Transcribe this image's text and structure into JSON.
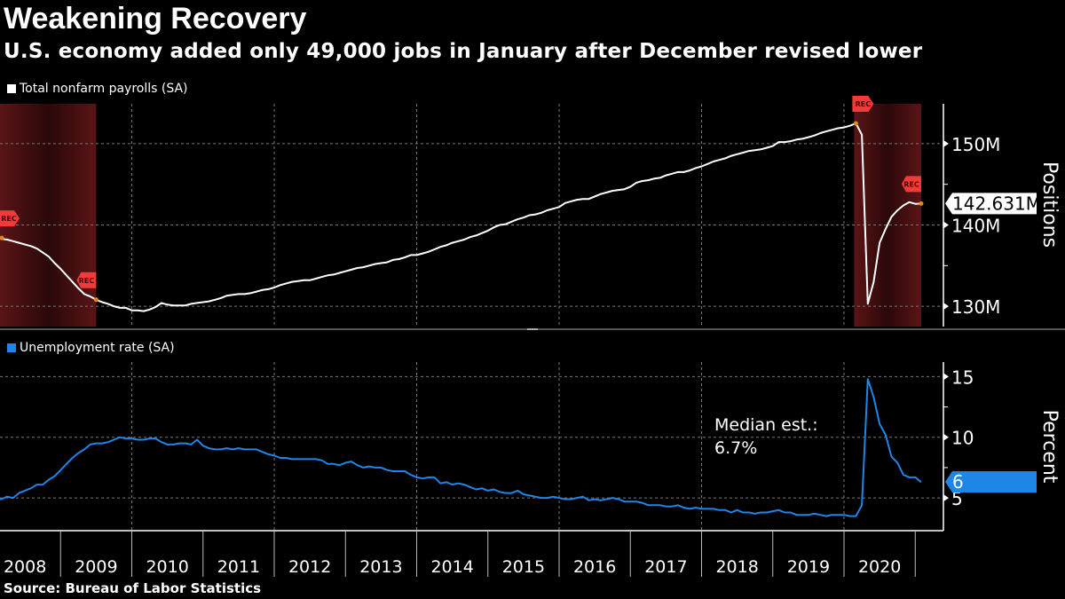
{
  "header": {
    "title": "Weakening Recovery",
    "subtitle": "U.S. economy added only 49,000 jobs in January after December revised lower"
  },
  "source": "Source: Bureau of Labor Statistics",
  "colors": {
    "background": "#000000",
    "payrolls": "#ffffff",
    "unemployment": "#1f86e8",
    "recession": "#5a1416",
    "rec_marker": "#f23a3a"
  },
  "chart_data": [
    {
      "type": "line",
      "legend": "Total nonfarm payrolls (SA)",
      "ylabel": "Positions",
      "ylim": [
        127.5,
        154.9
      ],
      "yticks": [
        "130M",
        "140M",
        "150M"
      ],
      "ytick_values": [
        130,
        140,
        150
      ],
      "start": "2008-01",
      "frequency": "monthly",
      "last_value_label": "142.631M",
      "recession_marker_label": "REC",
      "recessions": [
        [
          "2007-12",
          "2009-06"
        ],
        [
          "2020-02",
          "2021-01"
        ]
      ],
      "grid": true,
      "series": [
        {
          "values": [
            138.4,
            138.3,
            138.2,
            138.0,
            137.8,
            137.6,
            137.4,
            137.1,
            136.6,
            136.1,
            135.3,
            134.6,
            133.8,
            133.0,
            132.2,
            131.5,
            131.2,
            130.8,
            130.5,
            130.3,
            130.0,
            129.8,
            129.8,
            129.5,
            129.5,
            129.4,
            129.6,
            129.9,
            130.4,
            130.2,
            130.1,
            130.1,
            130.1,
            130.3,
            130.4,
            130.5,
            130.6,
            130.8,
            131.0,
            131.3,
            131.4,
            131.5,
            131.5,
            131.6,
            131.8,
            132.0,
            132.1,
            132.3,
            132.6,
            132.8,
            133.0,
            133.1,
            133.2,
            133.2,
            133.4,
            133.6,
            133.8,
            133.9,
            134.1,
            134.3,
            134.5,
            134.7,
            134.8,
            135.0,
            135.2,
            135.3,
            135.4,
            135.7,
            135.8,
            136.0,
            136.3,
            136.3,
            136.5,
            136.7,
            137.0,
            137.3,
            137.5,
            137.8,
            138.0,
            138.2,
            138.5,
            138.7,
            139.0,
            139.3,
            139.7,
            140.0,
            140.1,
            140.4,
            140.7,
            140.9,
            141.2,
            141.3,
            141.5,
            141.8,
            142.0,
            142.2,
            142.7,
            142.9,
            143.1,
            143.2,
            143.2,
            143.5,
            143.8,
            144.0,
            144.2,
            144.3,
            144.4,
            144.7,
            145.2,
            145.4,
            145.5,
            145.7,
            145.8,
            146.1,
            146.3,
            146.5,
            146.5,
            146.7,
            147.0,
            147.2,
            147.5,
            147.8,
            148.0,
            148.2,
            148.5,
            148.7,
            148.9,
            149.1,
            149.2,
            149.3,
            149.5,
            149.7,
            150.2,
            150.2,
            150.3,
            150.5,
            150.6,
            150.8,
            151.0,
            151.3,
            151.5,
            151.7,
            151.9,
            152.0,
            152.2,
            152.5,
            151.1,
            130.3,
            133.0,
            137.8,
            139.5,
            141.0,
            141.8,
            142.4,
            142.8,
            142.6,
            142.631
          ]
        }
      ]
    },
    {
      "type": "line",
      "legend": "Unemployment rate (SA)",
      "ylabel": "Percent",
      "ylim": [
        2.3,
        16.2
      ],
      "yticks": [
        "5",
        "10",
        "15"
      ],
      "ytick_values": [
        5,
        10,
        15
      ],
      "start": "2008-01",
      "frequency": "monthly",
      "last_value_label": "6",
      "annotation": [
        "Median est.:",
        "6.7%"
      ],
      "grid": true,
      "series": [
        {
          "values": [
            5.0,
            4.9,
            5.1,
            5.0,
            5.4,
            5.6,
            5.8,
            6.1,
            6.1,
            6.5,
            6.8,
            7.3,
            7.8,
            8.3,
            8.7,
            9.0,
            9.4,
            9.5,
            9.5,
            9.6,
            9.8,
            10.0,
            9.9,
            9.9,
            9.8,
            9.8,
            9.9,
            9.9,
            9.6,
            9.4,
            9.4,
            9.5,
            9.5,
            9.4,
            9.8,
            9.3,
            9.1,
            9.0,
            9.0,
            9.1,
            9.0,
            9.1,
            9.0,
            9.0,
            9.0,
            8.8,
            8.6,
            8.5,
            8.3,
            8.3,
            8.2,
            8.2,
            8.2,
            8.2,
            8.2,
            8.1,
            7.8,
            7.8,
            7.7,
            7.9,
            8.0,
            7.7,
            7.5,
            7.6,
            7.5,
            7.5,
            7.3,
            7.2,
            7.2,
            7.2,
            6.9,
            6.7,
            6.6,
            6.7,
            6.7,
            6.2,
            6.3,
            6.1,
            6.2,
            6.1,
            5.9,
            5.7,
            5.8,
            5.6,
            5.7,
            5.5,
            5.4,
            5.4,
            5.6,
            5.3,
            5.2,
            5.1,
            5.0,
            5.0,
            5.1,
            5.0,
            4.9,
            4.9,
            5.0,
            5.1,
            4.8,
            4.9,
            4.8,
            4.9,
            5.0,
            4.9,
            4.7,
            4.7,
            4.7,
            4.6,
            4.4,
            4.4,
            4.4,
            4.3,
            4.3,
            4.4,
            4.2,
            4.1,
            4.2,
            4.1,
            4.1,
            4.1,
            4.0,
            4.0,
            3.8,
            4.0,
            3.8,
            3.8,
            3.7,
            3.8,
            3.8,
            3.9,
            4.0,
            3.8,
            3.8,
            3.6,
            3.6,
            3.6,
            3.7,
            3.6,
            3.5,
            3.6,
            3.6,
            3.6,
            3.5,
            3.5,
            4.4,
            14.8,
            13.3,
            11.1,
            10.2,
            8.4,
            7.9,
            6.9,
            6.7,
            6.7,
            6.3
          ]
        }
      ]
    }
  ],
  "x_axis": {
    "tick_labels": [
      "2008",
      "2009",
      "2010",
      "2011",
      "2012",
      "2013",
      "2014",
      "2015",
      "2016",
      "2017",
      "2018",
      "2019",
      "2020"
    ]
  }
}
